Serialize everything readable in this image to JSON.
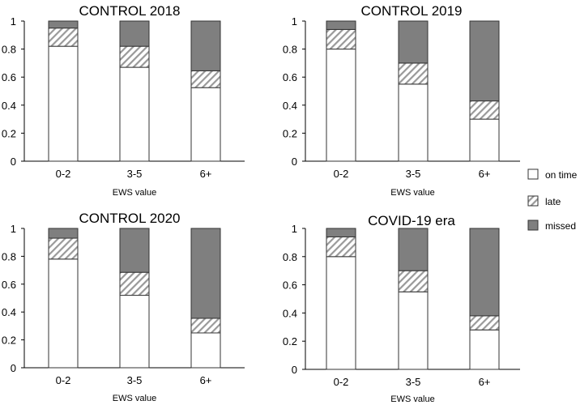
{
  "chart_data": [
    {
      "type": "bar",
      "stacked": true,
      "title": "CONTROL 2018",
      "xlabel": "EWS value",
      "ylabel": "",
      "ylim": [
        0,
        1
      ],
      "yticks": [
        "0",
        "0.2",
        "0.4",
        "0.6",
        "0.8",
        "1"
      ],
      "categories": [
        "0-2",
        "3-5",
        "6+"
      ],
      "series": [
        {
          "name": "on time",
          "values": [
            0.82,
            0.67,
            0.525
          ]
        },
        {
          "name": "late",
          "values": [
            0.13,
            0.15,
            0.12
          ]
        },
        {
          "name": "missed",
          "values": [
            0.05,
            0.18,
            0.355
          ]
        }
      ]
    },
    {
      "type": "bar",
      "stacked": true,
      "title": "CONTROL 2019",
      "xlabel": "EWS value",
      "ylabel": "",
      "ylim": [
        0,
        1
      ],
      "yticks": [
        "0",
        "0.2",
        "0.4",
        "0.6",
        "0.8",
        "1"
      ],
      "categories": [
        "0-2",
        "3-5",
        "6+"
      ],
      "series": [
        {
          "name": "on time",
          "values": [
            0.8,
            0.55,
            0.3
          ]
        },
        {
          "name": "late",
          "values": [
            0.14,
            0.15,
            0.13
          ]
        },
        {
          "name": "missed",
          "values": [
            0.06,
            0.3,
            0.57
          ]
        }
      ]
    },
    {
      "type": "bar",
      "stacked": true,
      "title": "CONTROL 2020",
      "xlabel": "EWS value",
      "ylabel": "",
      "ylim": [
        0,
        1
      ],
      "yticks": [
        "0",
        "0.2",
        "0.4",
        "0.6",
        "0.8",
        "1"
      ],
      "categories": [
        "0-2",
        "3-5",
        "6+"
      ],
      "series": [
        {
          "name": "on time",
          "values": [
            0.78,
            0.52,
            0.25
          ]
        },
        {
          "name": "late",
          "values": [
            0.15,
            0.165,
            0.105
          ]
        },
        {
          "name": "missed",
          "values": [
            0.07,
            0.315,
            0.645
          ]
        }
      ]
    },
    {
      "type": "bar",
      "stacked": true,
      "title": "COVID-19 era",
      "xlabel": "EWS value",
      "ylabel": "",
      "ylim": [
        0,
        1
      ],
      "yticks": [
        "0",
        "0.2",
        "0.4",
        "0.6",
        "0.8",
        "1"
      ],
      "categories": [
        "0-2",
        "3-5",
        "6+"
      ],
      "series": [
        {
          "name": "on time",
          "values": [
            0.8,
            0.55,
            0.28
          ]
        },
        {
          "name": "late",
          "values": [
            0.14,
            0.15,
            0.1
          ]
        },
        {
          "name": "missed",
          "values": [
            0.06,
            0.3,
            0.62
          ]
        }
      ]
    }
  ],
  "legend": {
    "placement": "right",
    "items": [
      "on time",
      "late",
      "missed"
    ]
  },
  "colors": {
    "on_time": "#ffffff",
    "late_stripe": "#999999",
    "missed": "#7f7f7f",
    "outline": "#333333"
  }
}
